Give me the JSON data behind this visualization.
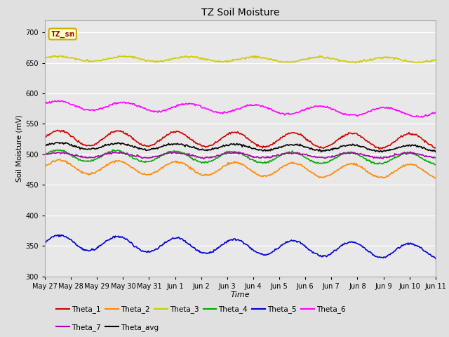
{
  "title": "TZ Soil Moisture",
  "xlabel": "Time",
  "ylabel": "Soil Moisture (mV)",
  "ylim": [
    300,
    720
  ],
  "yticks": [
    300,
    350,
    400,
    450,
    500,
    550,
    600,
    650,
    700
  ],
  "fig_bg_color": "#e0e0e0",
  "plot_bg_color": "#e8e8e8",
  "series": [
    {
      "name": "Theta_1",
      "color": "#cc0000",
      "base": 527,
      "amp": 12,
      "trend": -0.35,
      "freq": 2.8,
      "phase": 0.0
    },
    {
      "name": "Theta_2",
      "color": "#ff8800",
      "base": 480,
      "amp": 11,
      "trend": -0.55,
      "freq": 2.8,
      "phase": 0.0
    },
    {
      "name": "Theta_3",
      "color": "#cccc00",
      "base": 657,
      "amp": 4,
      "trend": -0.15,
      "freq": 2.5,
      "phase": 0.3
    },
    {
      "name": "Theta_4",
      "color": "#00aa00",
      "base": 498,
      "amp": 9,
      "trend": -0.35,
      "freq": 2.8,
      "phase": 0.2
    },
    {
      "name": "Theta_5",
      "color": "#0000cc",
      "base": 356,
      "amp": 12,
      "trend": -1.0,
      "freq": 2.8,
      "phase": 0.0
    },
    {
      "name": "Theta_6",
      "color": "#ff00ff",
      "base": 581,
      "amp": 7,
      "trend": -0.85,
      "freq": 2.5,
      "phase": 0.3
    },
    {
      "name": "Theta_7",
      "color": "#aa00aa",
      "base": 499,
      "amp": 4,
      "trend": -0.05,
      "freq": 2.8,
      "phase": 0.1
    },
    {
      "name": "Theta_avg",
      "color": "#000000",
      "base": 514,
      "amp": 5,
      "trend": -0.3,
      "freq": 2.8,
      "phase": 0.0
    }
  ],
  "annotation_text": "TZ_sm",
  "annotation_color": "#880000",
  "annotation_bg": "#ffffcc",
  "annotation_edge": "#ccaa00",
  "n_points": 500,
  "xtick_labels": [
    "May 27",
    "May 28",
    "May 29",
    "May 30",
    "May 31",
    "Jun 1",
    "Jun 2",
    "Jun 3",
    "Jun 4",
    "Jun 5",
    "Jun 6",
    "Jun 7",
    "Jun 8",
    "Jun 9",
    "Jun 10",
    "Jun 11"
  ],
  "legend_row1": [
    "Theta_1",
    "Theta_2",
    "Theta_3",
    "Theta_4",
    "Theta_5",
    "Theta_6"
  ],
  "legend_row2": [
    "Theta_7",
    "Theta_avg"
  ]
}
